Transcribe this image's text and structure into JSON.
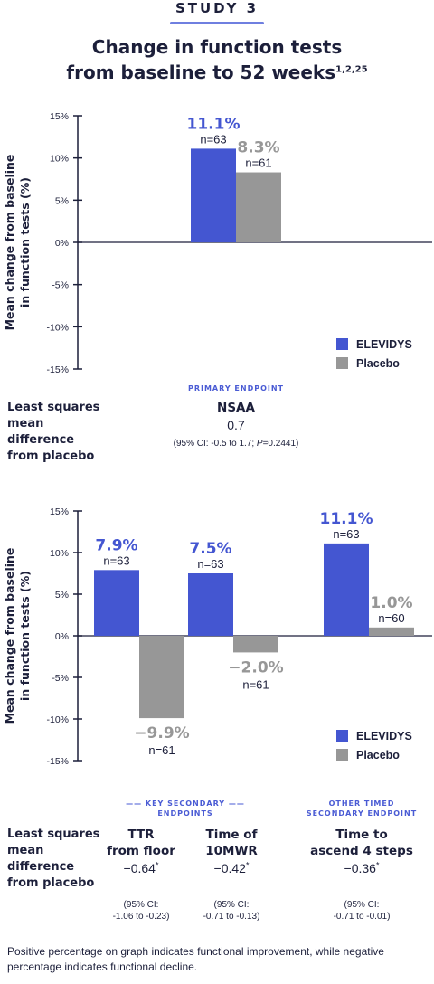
{
  "header": {
    "study": "STUDY 3",
    "title_line1": "Change in function tests",
    "title_line2": "from baseline to 52 weeks",
    "title_refs": "1,2,25"
  },
  "colors": {
    "elevidys": "#4456d1",
    "placebo": "#979797",
    "text": "#1c1f3a",
    "accent": "#4a5bd4"
  },
  "legend": {
    "elevidys": "ELEVIDYS",
    "placebo": "Placebo"
  },
  "chart_data": [
    {
      "type": "bar",
      "ylabel_line1": "Mean change from baseline",
      "ylabel_line2": "in function tests (%)",
      "ylim": [
        -15,
        15
      ],
      "yticks": [
        "15%",
        "10%",
        "5%",
        "0%",
        "-5%",
        "-10%",
        "-15%"
      ],
      "categories": [
        "NSAA"
      ],
      "series": [
        {
          "name": "ELEVIDYS",
          "values": [
            11.1
          ],
          "labels": [
            "11.1%"
          ],
          "n": [
            "n=63"
          ]
        },
        {
          "name": "Placebo",
          "values": [
            8.3
          ],
          "labels": [
            "8.3%"
          ],
          "n": [
            "n=61"
          ]
        }
      ]
    },
    {
      "type": "bar",
      "ylabel_line1": "Mean change from baseline",
      "ylabel_line2": "in function tests (%)",
      "ylim": [
        -15,
        15
      ],
      "yticks": [
        "15%",
        "10%",
        "5%",
        "0%",
        "-5%",
        "-10%",
        "-15%"
      ],
      "categories": [
        "TTR from floor",
        "Time of 10MWR",
        "Time to ascend 4 steps"
      ],
      "series": [
        {
          "name": "ELEVIDYS",
          "values": [
            7.9,
            7.5,
            11.1
          ],
          "labels": [
            "7.9%",
            "7.5%",
            "11.1%"
          ],
          "n": [
            "n=63",
            "n=63",
            "n=63"
          ]
        },
        {
          "name": "Placebo",
          "values": [
            -9.9,
            -2.0,
            1.0
          ],
          "labels": [
            "−9.9%",
            "−2.0%",
            "1.0%"
          ],
          "n": [
            "n=61",
            "n=61",
            "n=60"
          ]
        }
      ]
    }
  ],
  "section1": {
    "endpoint_label": "PRIMARY ENDPOINT",
    "ls_label": "Least squares\nmean\ndifference\nfrom placebo",
    "name": "NSAA",
    "value": "0.7",
    "ci_pre": "(95% CI: -0.5 to 1.7; ",
    "ci_p": "P",
    "ci_post": "=0.2441)"
  },
  "section2": {
    "key_label": "—— KEY SECONDARY ——\nENDPOINTS",
    "other_label": "OTHER TIMED\nSECONDARY ENDPOINT",
    "ls_label": "Least squares\nmean\ndifference\nfrom placebo",
    "endpoints": [
      {
        "name": "TTR\nfrom floor",
        "value": "−0.64",
        "mark": "*",
        "ci": "(95% CI:\n-1.06 to -0.23)"
      },
      {
        "name": "Time of\n10MWR",
        "value": "−0.42",
        "mark": "*",
        "ci": "(95% CI:\n-0.71 to -0.13)"
      },
      {
        "name": "Time to\nascend 4 steps",
        "value": "−0.36",
        "mark": "*",
        "ci": "(95% CI:\n-0.71 to -0.01)"
      }
    ]
  },
  "footnote": "Positive percentage on graph indicates functional improvement, while negative percentage indicates functional decline."
}
